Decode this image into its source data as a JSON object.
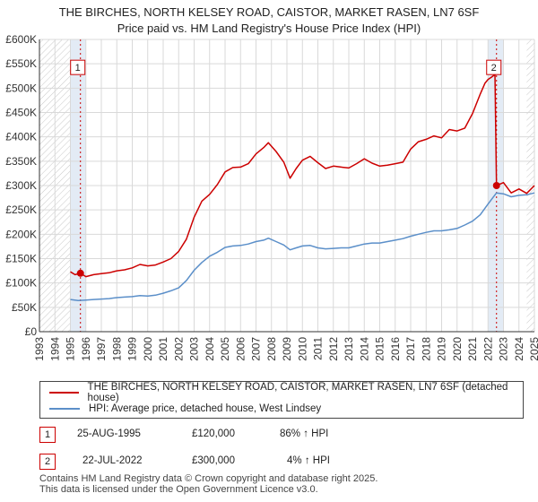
{
  "header": {
    "title_line1": "THE BIRCHES, NORTH KELSEY ROAD, CAISTOR, MARKET RASEN, LN7 6SF",
    "title_line2": "Price paid vs. HM Land Registry's House Price Index (HPI)"
  },
  "colors": {
    "property": "#cc0000",
    "hpi": "#5b8fc9",
    "grid": "#d9d9d9",
    "band": "#dce6f2",
    "marker": "#cc0000"
  },
  "legend": {
    "property_label": "THE BIRCHES, NORTH KELSEY ROAD, CAISTOR, MARKET RASEN, LN7 6SF (detached house)",
    "hpi_label": "HPI: Average price, detached house, West Lindsey"
  },
  "transactions": [
    {
      "num": "1",
      "date": "25-AUG-1995",
      "price": "£120,000",
      "hpi_delta": "86% ↑ HPI"
    },
    {
      "num": "2",
      "date": "22-JUL-2022",
      "price": "£300,000",
      "hpi_delta": "4% ↑ HPI"
    }
  ],
  "footer": {
    "line1": "Contains HM Land Registry data © Crown copyright and database right 2025.",
    "line2": "This data is licensed under the Open Government Licence v3.0."
  },
  "chart_data": {
    "type": "line",
    "title": "THE BIRCHES, NORTH KELSEY ROAD, CAISTOR, MARKET RASEN, LN7 6SF",
    "subtitle": "Price paid vs. HM Land Registry's House Price Index (HPI)",
    "xlabel": "",
    "ylabel": "",
    "xlim": [
      1993,
      2025
    ],
    "ylim": [
      0,
      600000
    ],
    "yticks": [
      0,
      50000,
      100000,
      150000,
      200000,
      250000,
      300000,
      350000,
      400000,
      450000,
      500000,
      550000,
      600000
    ],
    "ytick_labels": [
      "£0",
      "£50K",
      "£100K",
      "£150K",
      "£200K",
      "£250K",
      "£300K",
      "£350K",
      "£400K",
      "£450K",
      "£500K",
      "£550K",
      "£600K"
    ],
    "xticks": [
      1993,
      1994,
      1995,
      1996,
      1997,
      1998,
      1999,
      2000,
      2001,
      2002,
      2003,
      2004,
      2005,
      2006,
      2007,
      2008,
      2009,
      2010,
      2011,
      2012,
      2013,
      2014,
      2015,
      2016,
      2017,
      2018,
      2019,
      2020,
      2021,
      2022,
      2023,
      2024,
      2025
    ],
    "xtick_labels": [
      "1993",
      "1994",
      "1995",
      "1996",
      "1997",
      "1998",
      "1999",
      "2000",
      "2001",
      "2002",
      "2003",
      "2004",
      "2005",
      "2006",
      "2007",
      "2008",
      "2009",
      "2010",
      "2011",
      "2012",
      "2013",
      "2014",
      "2015",
      "2016",
      "2017",
      "2018",
      "2019",
      "2020",
      "2021",
      "2022",
      "2023",
      "2024",
      "2025"
    ],
    "grid": true,
    "legend_position": "below",
    "hatched_before": 1995.0,
    "hatched_after": 2024.5,
    "shaded_bands": [
      [
        1995.0,
        1996.0
      ],
      [
        2022.0,
        2023.0
      ]
    ],
    "markers": [
      {
        "label": "1",
        "x": 1995.65,
        "y": 120000,
        "label_y": 550000
      },
      {
        "label": "2",
        "x": 2022.55,
        "y": 300000,
        "label_y": 550000
      }
    ],
    "series": [
      {
        "name": "THE BIRCHES, NORTH KELSEY ROAD, CAISTOR, MARKET RASEN, LN7 6SF (detached house)",
        "x": [
          1995.0,
          1995.3,
          1995.65,
          1996.0,
          1996.5,
          1997.0,
          1997.5,
          1998.0,
          1998.5,
          1999.0,
          1999.5,
          2000.0,
          2000.5,
          2001.0,
          2001.5,
          2002.0,
          2002.5,
          2003.0,
          2003.5,
          2004.0,
          2004.5,
          2005.0,
          2005.5,
          2006.0,
          2006.5,
          2007.0,
          2007.5,
          2007.8,
          2008.3,
          2008.8,
          2009.2,
          2009.6,
          2010.0,
          2010.5,
          2011.0,
          2011.5,
          2012.0,
          2012.5,
          2013.0,
          2013.5,
          2014.0,
          2014.5,
          2015.0,
          2015.5,
          2016.0,
          2016.5,
          2017.0,
          2017.5,
          2018.0,
          2018.5,
          2019.0,
          2019.5,
          2020.0,
          2020.5,
          2021.0,
          2021.5,
          2021.8,
          2022.0,
          2022.2,
          2022.45,
          2022.55,
          2023.0,
          2023.5,
          2024.0,
          2024.5,
          2025.0
        ],
        "values": [
          123000,
          117000,
          120000,
          113000,
          117000,
          119000,
          121000,
          125000,
          127000,
          131000,
          138000,
          135000,
          137000,
          143000,
          150000,
          165000,
          190000,
          235000,
          268000,
          282000,
          302000,
          328000,
          337000,
          338000,
          345000,
          365000,
          378000,
          388000,
          370000,
          348000,
          315000,
          335000,
          352000,
          360000,
          347000,
          335000,
          340000,
          338000,
          336000,
          345000,
          355000,
          346000,
          340000,
          342000,
          345000,
          348000,
          375000,
          390000,
          395000,
          402000,
          398000,
          415000,
          412000,
          418000,
          448000,
          488000,
          510000,
          518000,
          522000,
          528000,
          300000,
          306000,
          285000,
          293000,
          284000,
          300000
        ]
      },
      {
        "name": "HPI: Average price, detached house, West Lindsey",
        "x": [
          1995.0,
          1995.5,
          1996.0,
          1996.5,
          1997.0,
          1997.5,
          1998.0,
          1998.5,
          1999.0,
          1999.5,
          2000.0,
          2000.5,
          2001.0,
          2001.5,
          2002.0,
          2002.5,
          2003.0,
          2003.5,
          2004.0,
          2004.5,
          2005.0,
          2005.5,
          2006.0,
          2006.5,
          2007.0,
          2007.5,
          2007.8,
          2008.3,
          2008.8,
          2009.2,
          2009.6,
          2010.0,
          2010.5,
          2011.0,
          2011.5,
          2012.0,
          2012.5,
          2013.0,
          2013.5,
          2014.0,
          2014.5,
          2015.0,
          2015.5,
          2016.0,
          2016.5,
          2017.0,
          2017.5,
          2018.0,
          2018.5,
          2019.0,
          2019.5,
          2020.0,
          2020.5,
          2021.0,
          2021.5,
          2022.0,
          2022.55,
          2023.0,
          2023.5,
          2024.0,
          2024.5,
          2025.0
        ],
        "values": [
          66000,
          64000,
          65000,
          66000,
          67000,
          68000,
          70000,
          71000,
          72000,
          74000,
          73000,
          75000,
          79000,
          84000,
          90000,
          105000,
          126000,
          142000,
          155000,
          163000,
          173000,
          176000,
          177000,
          180000,
          185000,
          188000,
          192000,
          185000,
          178000,
          168000,
          172000,
          176000,
          177000,
          172000,
          170000,
          171000,
          172000,
          172000,
          176000,
          180000,
          182000,
          182000,
          185000,
          188000,
          191000,
          196000,
          200000,
          204000,
          207000,
          207000,
          209000,
          212000,
          219000,
          227000,
          240000,
          262000,
          285000,
          283000,
          277000,
          280000,
          281000,
          285000
        ]
      }
    ]
  }
}
